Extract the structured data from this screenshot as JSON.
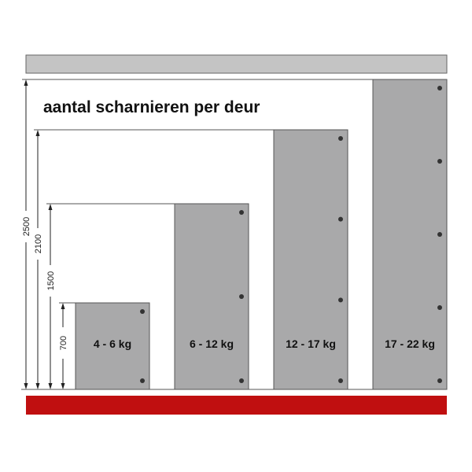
{
  "title": "aantal scharnieren per deur",
  "colors": {
    "door": "#a9a9aa",
    "top_bar": "#c4c4c4",
    "floor": "#c00f10",
    "hinge": "#333333",
    "line": "#555555"
  },
  "doors": [
    {
      "label": "4 - 6 kg",
      "height": 700,
      "hinges": 2
    },
    {
      "label": "6 - 12 kg",
      "height": 1500,
      "hinges": 3
    },
    {
      "label": "12 - 17 kg",
      "height": 2100,
      "hinges": 4
    },
    {
      "label": "17 - 22 kg",
      "height": 2500,
      "hinges": 5
    }
  ],
  "dimensions": [
    "2500",
    "2100",
    "1500",
    "700"
  ]
}
